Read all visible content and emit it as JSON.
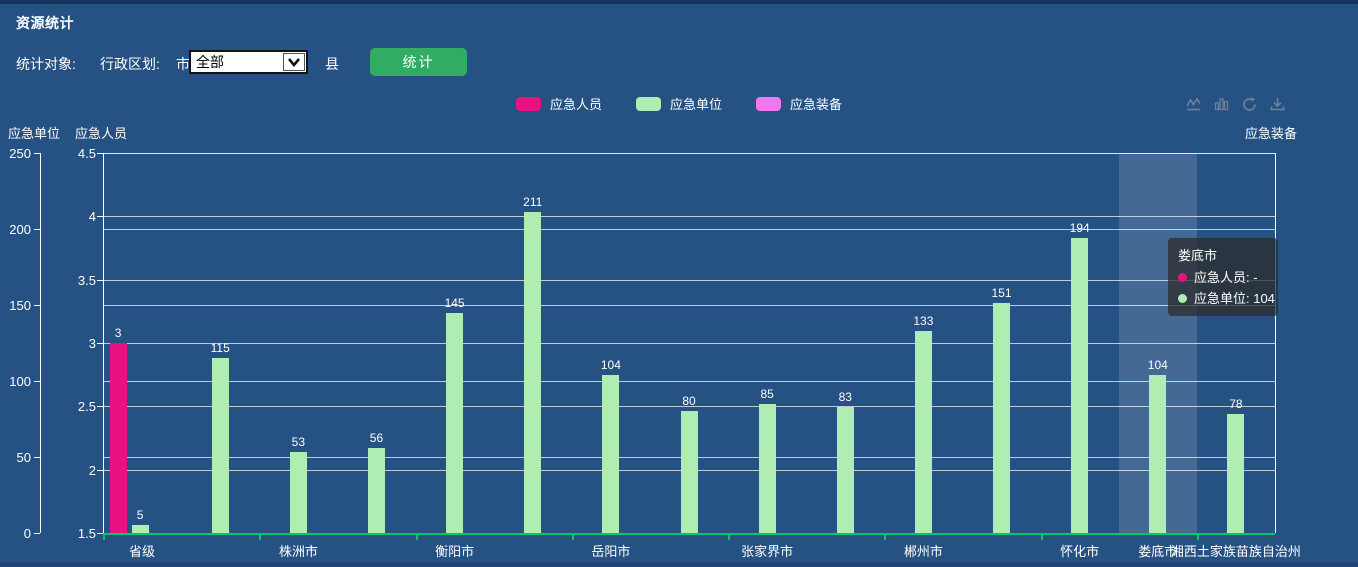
{
  "header": {
    "title": "资源统计"
  },
  "filters": {
    "stat_object_label": "统计对象:",
    "region_label": "行政区划:",
    "city_label": "市",
    "city_select_value": "全部",
    "county_label": "县",
    "stat_button_label": "统计"
  },
  "legend": [
    {
      "label": "应急人员",
      "color": "#ea1283"
    },
    {
      "label": "应急单位",
      "color": "#afedb2"
    },
    {
      "label": "应急装备",
      "color": "#f078ee"
    }
  ],
  "toolbox": {
    "icons": [
      "line-chart",
      "bar-chart",
      "restore",
      "download"
    ]
  },
  "colors": {
    "background": "#265183",
    "xaxis_green": "#00c96b",
    "button_green": "#31ad63",
    "icon_gray": "#73849b"
  },
  "chart_data": {
    "type": "bar",
    "categories": [
      "省级",
      "",
      "株洲市",
      "",
      "衡阳市",
      "",
      "岳阳市",
      "",
      "张家界市",
      "",
      "郴州市",
      "",
      "怀化市",
      "娄底市",
      "湘西土家族苗族自治州"
    ],
    "x_labels_visible": [
      "省级",
      "株洲市",
      "衡阳市",
      "岳阳市",
      "张家界市",
      "郴州市",
      "怀化市",
      "湘西土家族苗族自治州"
    ],
    "series": [
      {
        "name": "应急人员",
        "color": "#ea1283",
        "yaxis": "person",
        "values": [
          3,
          null,
          null,
          null,
          null,
          null,
          null,
          null,
          null,
          null,
          null,
          null,
          null,
          null,
          null
        ]
      },
      {
        "name": "应急单位",
        "color": "#afedb2",
        "yaxis": "unit",
        "values": [
          5,
          115,
          53,
          56,
          145,
          211,
          104,
          80,
          85,
          83,
          133,
          151,
          194,
          104,
          78
        ]
      },
      {
        "name": "应急装备",
        "color": "#f078ee",
        "yaxis": "equip",
        "values": [
          null,
          null,
          null,
          null,
          null,
          null,
          null,
          null,
          null,
          null,
          null,
          null,
          null,
          null,
          null
        ]
      }
    ],
    "axes": {
      "unit": {
        "name": "应急单位",
        "min": 0,
        "max": 250,
        "ticks": [
          0,
          50,
          100,
          150,
          200,
          250
        ]
      },
      "person": {
        "name": "应急人员",
        "min": 1.5,
        "max": 4.5,
        "ticks": [
          1.5,
          2,
          2.5,
          3,
          3.5,
          4,
          4.5
        ]
      },
      "equip": {
        "name": "应急装备"
      }
    },
    "highlight_category_index": 13,
    "grid": true,
    "legend_position": "top-center"
  },
  "tooltip": {
    "title": "娄底市",
    "rows": [
      {
        "text": "应急人员: -",
        "color": "#ea1283"
      },
      {
        "text": "应急单位: 104",
        "color": "#afedb2"
      }
    ]
  }
}
